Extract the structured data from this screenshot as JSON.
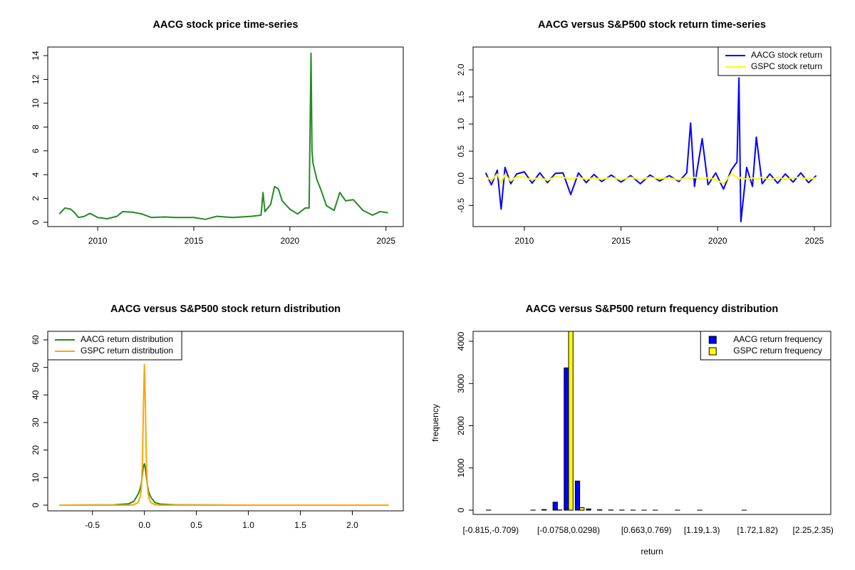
{
  "chart_data": [
    {
      "type": "line",
      "title": "AACG stock price time-series",
      "x": [
        2008.0,
        2008.3,
        2008.6,
        2008.8,
        2009.0,
        2009.3,
        2009.6,
        2010.0,
        2010.5,
        2011.0,
        2011.3,
        2011.8,
        2012.3,
        2012.8,
        2013.5,
        2014.0,
        2015.0,
        2015.6,
        2016.2,
        2017.0,
        2018.0,
        2018.5,
        2018.6,
        2018.7,
        2019.0,
        2019.2,
        2019.4,
        2019.6,
        2020.0,
        2020.4,
        2020.8,
        2021.0,
        2021.1,
        2021.15,
        2021.2,
        2021.4,
        2021.6,
        2021.9,
        2022.3,
        2022.6,
        2022.9,
        2023.3,
        2023.8,
        2024.3,
        2024.7,
        2025.1
      ],
      "series": [
        {
          "name": "AACG",
          "color": "#228B22",
          "values": [
            0.7,
            1.2,
            1.1,
            0.8,
            0.4,
            0.5,
            0.75,
            0.4,
            0.3,
            0.5,
            0.9,
            0.85,
            0.7,
            0.4,
            0.45,
            0.4,
            0.4,
            0.25,
            0.5,
            0.4,
            0.5,
            0.6,
            2.5,
            0.9,
            1.5,
            3.0,
            2.8,
            1.8,
            1.1,
            0.7,
            1.2,
            1.2,
            14.2,
            6.0,
            5.0,
            3.6,
            2.8,
            1.4,
            1.0,
            2.5,
            1.8,
            1.9,
            1.0,
            0.6,
            0.9,
            0.8
          ]
        }
      ],
      "xlim": [
        2007.4,
        2025.9
      ],
      "xticks": [
        2010,
        2015,
        2020,
        2025
      ],
      "ylim": [
        -0.36,
        14.72
      ],
      "yticks": [
        0,
        2,
        4,
        6,
        8,
        10,
        12,
        14
      ]
    },
    {
      "type": "line",
      "title": "AACG versus S&P500 stock return time-series",
      "x": [
        2008.0,
        2008.3,
        2008.6,
        2008.8,
        2009.0,
        2009.3,
        2009.6,
        2010.0,
        2010.4,
        2010.8,
        2011.2,
        2011.6,
        2012.0,
        2012.4,
        2012.8,
        2013.2,
        2013.6,
        2014.0,
        2014.5,
        2015.0,
        2015.5,
        2016.0,
        2016.5,
        2017.0,
        2017.5,
        2018.0,
        2018.4,
        2018.6,
        2018.8,
        2019.2,
        2019.5,
        2019.9,
        2020.3,
        2020.7,
        2021.0,
        2021.1,
        2021.2,
        2021.5,
        2021.8,
        2022.0,
        2022.3,
        2022.7,
        2023.1,
        2023.5,
        2023.9,
        2024.3,
        2024.7,
        2025.1
      ],
      "series": [
        {
          "name": "AACG stock return",
          "color": "#0000FF",
          "values": [
            0.1,
            -0.12,
            0.15,
            -0.57,
            0.2,
            -0.1,
            0.08,
            0.12,
            -0.09,
            0.1,
            -0.08,
            0.09,
            0.1,
            -0.3,
            0.1,
            -0.08,
            0.07,
            -0.06,
            0.06,
            -0.07,
            0.05,
            -0.1,
            0.06,
            -0.05,
            0.05,
            -0.06,
            0.1,
            1.02,
            -0.15,
            0.73,
            -0.12,
            0.1,
            -0.2,
            0.15,
            0.3,
            1.85,
            -0.8,
            0.2,
            -0.15,
            0.76,
            -0.1,
            0.08,
            -0.09,
            0.08,
            -0.07,
            0.1,
            -0.08,
            0.05
          ]
        },
        {
          "name": "GSPC stock return",
          "color": "#FFFF00",
          "values": [
            0.03,
            -0.04,
            0.08,
            -0.09,
            0.07,
            -0.05,
            0.03,
            0.02,
            -0.03,
            0.02,
            -0.04,
            0.03,
            0.02,
            -0.02,
            0.02,
            -0.02,
            0.01,
            -0.02,
            0.02,
            -0.03,
            0.02,
            -0.03,
            0.02,
            -0.01,
            0.01,
            -0.03,
            0.02,
            -0.02,
            0.02,
            -0.02,
            0.01,
            -0.02,
            -0.1,
            0.08,
            0.02,
            -0.02,
            0.02,
            -0.02,
            0.01,
            -0.02,
            0.02,
            -0.03,
            0.02,
            -0.02,
            0.01,
            0.02,
            -0.02,
            0.01
          ]
        }
      ],
      "legend": "topright",
      "xlim": [
        2007.35,
        2025.85
      ],
      "xticks": [
        2010,
        2015,
        2020,
        2025
      ],
      "ylim": [
        -0.89,
        2.42
      ],
      "yticks": [
        -0.5,
        {
          "value": 0,
          "label": "0.0"
        },
        0.5,
        {
          "value": 1,
          "label": "1.0"
        },
        1.5,
        {
          "value": 2,
          "label": "2.0"
        }
      ]
    },
    {
      "type": "line",
      "title": "AACG versus S&P500 stock return distribution",
      "x": [
        -0.82,
        -0.3,
        -0.15,
        -0.1,
        -0.06,
        -0.04,
        -0.03,
        -0.02,
        -0.01,
        0,
        0.01,
        0.02,
        0.03,
        0.04,
        0.06,
        0.1,
        0.15,
        0.3,
        1,
        2.35
      ],
      "series": [
        {
          "name": "AACG return distribution",
          "color": "#228B22",
          "values": [
            0,
            0.1,
            0.5,
            1.5,
            4,
            6,
            8,
            11,
            14,
            15,
            13,
            10,
            7,
            5,
            3,
            1,
            0.4,
            0.1,
            0,
            0
          ]
        },
        {
          "name": "GSPC return distribution",
          "color": "#FFA500",
          "values": [
            0,
            0,
            0,
            0.2,
            1,
            3,
            6,
            14,
            35,
            51,
            35,
            14,
            6,
            3,
            1,
            0.2,
            0,
            0,
            0,
            0
          ]
        }
      ],
      "legend": "topleft",
      "xlim": [
        -0.93,
        2.49
      ],
      "xticks": [
        -0.5,
        {
          "value": 0,
          "label": "0.0"
        },
        0.5,
        {
          "value": 1,
          "label": "1.0"
        },
        1.5,
        {
          "value": 2,
          "label": "2.0"
        }
      ],
      "ylim": [
        -2.07,
        63.1
      ],
      "yticks": [
        0,
        10,
        20,
        30,
        40,
        50,
        60
      ]
    },
    {
      "type": "bar",
      "title": "AACG versus S&P500 return frequency distribution",
      "xlabel": "return",
      "ylabel": "frequency",
      "categories": [
        "[-0.815,-0.709)",
        null,
        null,
        null,
        null,
        null,
        null,
        "[-0.0758,0.0298)",
        null,
        null,
        null,
        null,
        null,
        null,
        "[0.663,0.769)",
        null,
        null,
        null,
        null,
        "[1.19,1.3)",
        null,
        null,
        null,
        null,
        "[1.72,1.82)",
        null,
        null,
        null,
        null,
        "[2.25,2.35)"
      ],
      "series": [
        {
          "name": "AACG return frequency",
          "color": "#0000FF",
          "values": [
            3,
            0,
            0,
            0,
            2,
            15,
            190,
            3370,
            690,
            30,
            10,
            5,
            3,
            2,
            1,
            1,
            0,
            1,
            0,
            1,
            0,
            0,
            0,
            1,
            0,
            0,
            0,
            0,
            0,
            0
          ]
        },
        {
          "name": "GSPC return frequency",
          "color": "#FFFF00",
          "values": [
            0,
            0,
            0,
            0,
            0,
            0,
            5,
            4280,
            60,
            0,
            0,
            0,
            0,
            0,
            0,
            0,
            0,
            0,
            0,
            0,
            0,
            0,
            0,
            0,
            0,
            0,
            0,
            0,
            0,
            0
          ]
        }
      ],
      "legend": "topright",
      "ylim": [
        -101,
        4236
      ],
      "yticks": [
        0,
        1000,
        2000,
        3000,
        4000
      ]
    }
  ]
}
